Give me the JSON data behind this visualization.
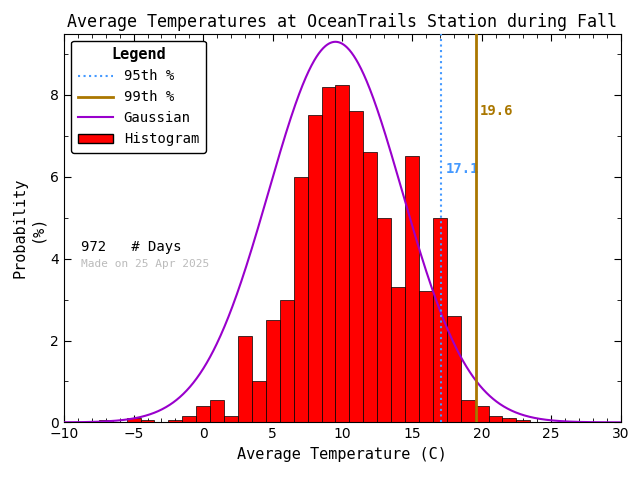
{
  "title": "Average Temperatures at OceanTrails Station during Fall",
  "xlabel": "Average Temperature (C)",
  "ylabel_line1": "Probability",
  "ylabel_line2": "(%)",
  "n_days": 972,
  "date_label": "Made on 25 Apr 2025",
  "percentile_95": 17.1,
  "percentile_99": 19.6,
  "bar_color": "#ff0000",
  "bar_edge_color": "#000000",
  "gaussian_color": "#9900cc",
  "p95_color": "#4499ff",
  "p99_color": "#aa7700",
  "xlim": [
    -10,
    30
  ],
  "ylim": [
    0,
    9.5
  ],
  "xticks": [
    -10,
    -5,
    0,
    5,
    10,
    15,
    20,
    25,
    30
  ],
  "yticks": [
    0,
    2,
    4,
    6,
    8
  ],
  "bin_centers": [
    -7,
    -6,
    -5,
    -4,
    -3,
    -2,
    -1,
    0,
    1,
    2,
    3,
    4,
    5,
    6,
    7,
    8,
    9,
    10,
    11,
    12,
    13,
    14,
    15,
    16,
    17,
    18,
    19,
    20,
    21,
    22,
    23,
    24
  ],
  "bin_heights": [
    0.05,
    0.0,
    0.1,
    0.05,
    0.0,
    0.05,
    0.15,
    0.4,
    0.55,
    0.15,
    2.1,
    1.0,
    2.5,
    3.0,
    6.0,
    7.5,
    8.2,
    8.25,
    7.6,
    6.6,
    5.0,
    3.3,
    6.5,
    3.2,
    5.0,
    2.6,
    0.55,
    0.4,
    0.15,
    0.1,
    0.05,
    0.0
  ],
  "gauss_mean": 9.5,
  "gauss_std": 4.8,
  "gauss_peak": 9.3,
  "background_color": "#ffffff",
  "legend_fontsize": 10,
  "title_fontsize": 12
}
